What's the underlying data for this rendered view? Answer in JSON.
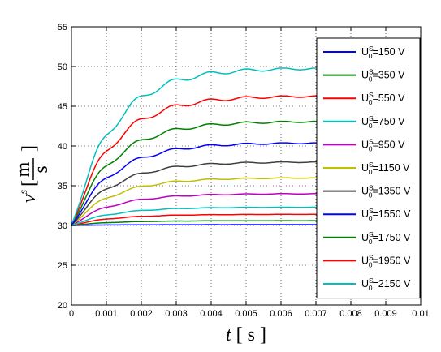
{
  "chart_data": {
    "type": "line",
    "xlabel": {
      "symbol": "t",
      "open": "[",
      "unit": "s",
      "close": "]"
    },
    "ylabel": {
      "symbol": "v",
      "sup": "s",
      "open": "[",
      "unit_num": "m",
      "unit_den": "s",
      "close": "]"
    },
    "xlim": [
      0,
      0.01
    ],
    "ylim": [
      20,
      55
    ],
    "x_ticks": [
      "0",
      "0.001",
      "0.002",
      "0.003",
      "0.004",
      "0.005",
      "0.006",
      "0.007",
      "0.008",
      "0.009",
      "0.01"
    ],
    "y_ticks": [
      "20",
      "25",
      "30",
      "35",
      "40",
      "45",
      "50",
      "55"
    ],
    "grid": true,
    "legend_position": "right",
    "series": [
      {
        "name": "U",
        "sup": "S",
        "sub": "0",
        "suffix": "=150 V",
        "color": "#0000ff",
        "final": 30.1
      },
      {
        "name": "U",
        "sup": "S",
        "sub": "0",
        "suffix": "=350 V",
        "color": "#008000",
        "final": 43.1
      },
      {
        "name": "U",
        "sup": "S",
        "sub": "0",
        "suffix": "=550 V",
        "color": "#ff0000",
        "final": 46.3
      },
      {
        "name": "U",
        "sup": "S",
        "sub": "0",
        "suffix": "=750 V",
        "color": "#00bfbf",
        "final": 49.8
      },
      {
        "name": "U",
        "sup": "S",
        "sub": "0",
        "suffix": "=950 V",
        "color": "#bf00bf",
        "final": 34.0
      },
      {
        "name": "U",
        "sup": "S",
        "sub": "0",
        "suffix": "=1150 V",
        "color": "#bfbf00",
        "final": 36.0
      },
      {
        "name": "U",
        "sup": "S",
        "sub": "0",
        "suffix": "=1350 V",
        "color": "#404040",
        "final": 38.0
      },
      {
        "name": "U",
        "sup": "S",
        "sub": "0",
        "suffix": "=1550 V",
        "color": "#0000ff",
        "final": 40.4
      },
      {
        "name": "U",
        "sup": "S",
        "sub": "0",
        "suffix": "=1750 V",
        "color": "#008000",
        "final": 30.6
      },
      {
        "name": "U",
        "sup": "S",
        "sub": "0",
        "suffix": "=1950 V",
        "color": "#ff0000",
        "final": 31.4
      },
      {
        "name": "U",
        "sup": "S",
        "sub": "0",
        "suffix": "=2150 V",
        "color": "#00bfbf",
        "final": 32.3
      }
    ],
    "start_value": 30
  }
}
